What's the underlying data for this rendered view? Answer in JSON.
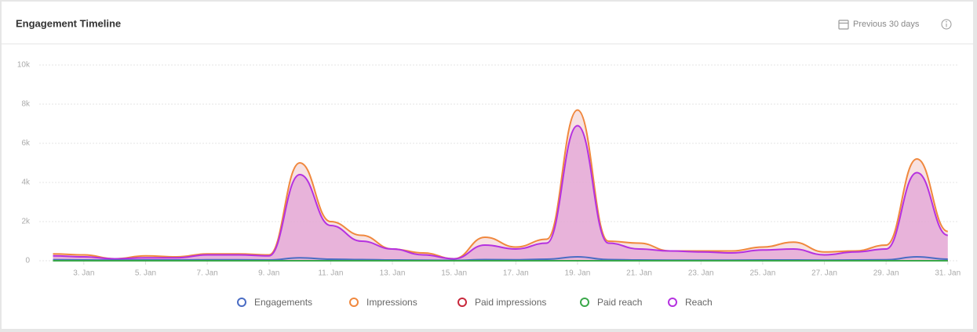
{
  "chart_data": {
    "type": "area",
    "title": "Engagement Timeline",
    "period": "Previous 30 days",
    "categories": [
      null,
      "3. Jan",
      null,
      "5. Jan",
      null,
      "7. Jan",
      null,
      "9. Jan",
      null,
      "11. Jan",
      null,
      "13. Jan",
      null,
      "15. Jan",
      null,
      "17. Jan",
      null,
      "19. Jan",
      null,
      "21. Jan",
      null,
      "23. Jan",
      null,
      "25. Jan",
      null,
      "27. Jan",
      null,
      "29. Jan",
      null,
      "31. Jan"
    ],
    "ylim": [
      0,
      10000
    ],
    "yticks": [
      0,
      {
        "value": 2000,
        "label": "2k"
      },
      {
        "value": 4000,
        "label": "4k"
      },
      {
        "value": 6000,
        "label": "6k"
      },
      {
        "value": 8000,
        "label": "8k"
      },
      {
        "value": 10000,
        "label": "10k"
      }
    ],
    "grid": true,
    "legend": "bottom",
    "series": [
      {
        "name": "Engagements",
        "color": "#4a6cc4",
        "values": [
          50,
          40,
          30,
          40,
          40,
          50,
          50,
          40,
          150,
          80,
          60,
          40,
          30,
          20,
          60,
          50,
          80,
          200,
          60,
          40,
          30,
          30,
          30,
          40,
          40,
          30,
          40,
          50,
          200,
          80
        ]
      },
      {
        "name": "Impressions",
        "color": "#f0883e",
        "values": [
          350,
          300,
          100,
          250,
          200,
          350,
          350,
          300,
          5000,
          2000,
          1300,
          600,
          400,
          100,
          1200,
          700,
          1100,
          7700,
          1000,
          900,
          500,
          500,
          500,
          700,
          950,
          450,
          500,
          800,
          5200,
          1500
        ]
      },
      {
        "name": "Paid impressions",
        "color": "#c8283c",
        "values": [
          0,
          0,
          0,
          0,
          0,
          0,
          0,
          0,
          0,
          0,
          0,
          0,
          0,
          0,
          0,
          0,
          0,
          0,
          0,
          0,
          0,
          0,
          0,
          0,
          0,
          0,
          0,
          0,
          0,
          0
        ]
      },
      {
        "name": "Paid reach",
        "color": "#3aa84a",
        "values": [
          0,
          0,
          0,
          0,
          0,
          0,
          0,
          0,
          0,
          0,
          0,
          0,
          0,
          0,
          0,
          0,
          0,
          0,
          0,
          0,
          0,
          0,
          0,
          0,
          0,
          0,
          0,
          0,
          0,
          0
        ]
      },
      {
        "name": "Reach",
        "color": "#b531e0",
        "values": [
          250,
          200,
          100,
          150,
          150,
          300,
          300,
          250,
          4400,
          1800,
          1000,
          600,
          300,
          100,
          800,
          600,
          900,
          6900,
          900,
          600,
          500,
          450,
          400,
          550,
          600,
          300,
          450,
          600,
          4500,
          1300
        ]
      }
    ]
  }
}
